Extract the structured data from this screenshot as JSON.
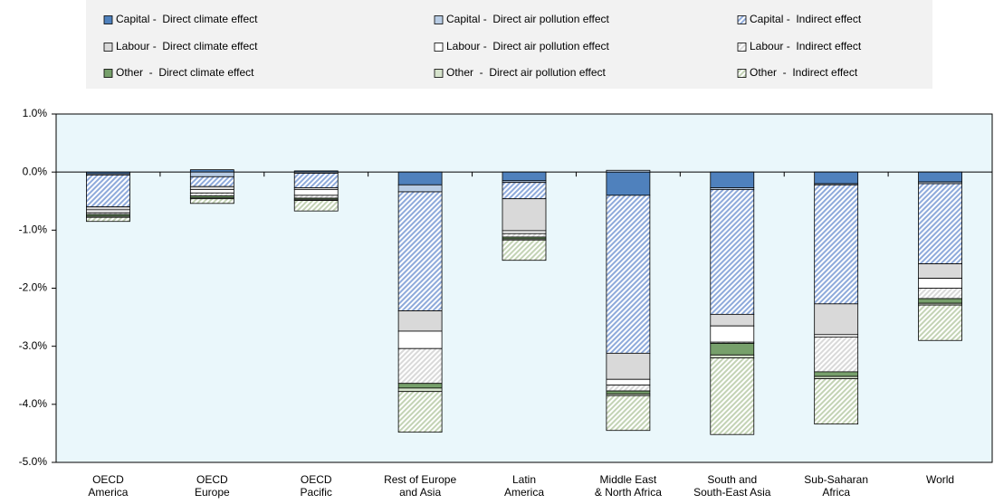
{
  "chart_data": {
    "type": "stacked-bar",
    "categories": [
      [
        "OECD",
        "America"
      ],
      [
        "OECD",
        "Europe"
      ],
      [
        "OECD",
        "Pacific"
      ],
      [
        "Rest of Europe",
        "and Asia"
      ],
      [
        "Latin",
        "America"
      ],
      [
        "Middle East",
        "& North Africa"
      ],
      [
        "South and",
        "South-East Asia"
      ],
      [
        "Sub-Saharan",
        "Africa"
      ],
      [
        "World"
      ]
    ],
    "series": [
      {
        "name": "Capital -  Direct climate effect",
        "color": "#4f81bd",
        "hatch": false,
        "values": [
          -0.03,
          0.04,
          0.02,
          -0.22,
          -0.15,
          -0.4,
          -0.27,
          -0.2,
          -0.17
        ]
      },
      {
        "name": "Capital -  Direct air pollution effect",
        "color": "#b8cce4",
        "hatch": false,
        "values": [
          -0.02,
          -0.08,
          -0.02,
          -0.12,
          -0.03,
          0.03,
          -0.03,
          -0.02,
          -0.03
        ]
      },
      {
        "name": "Capital -  Indirect effect",
        "color": "#8eaadb",
        "hatch": true,
        "values": [
          -0.55,
          -0.17,
          -0.25,
          -2.05,
          -0.28,
          -2.72,
          -2.15,
          -2.05,
          -1.38
        ]
      },
      {
        "name": "Labour -  Direct climate effect",
        "color": "#d9d9d9",
        "hatch": false,
        "values": [
          -0.05,
          -0.05,
          -0.03,
          -0.35,
          -0.55,
          -0.45,
          -0.2,
          -0.53,
          -0.25
        ]
      },
      {
        "name": "Labour -  Direct air pollution effect",
        "color": "#ffffff",
        "hatch": false,
        "values": [
          -0.05,
          -0.06,
          -0.1,
          -0.3,
          -0.05,
          -0.1,
          -0.28,
          -0.04,
          -0.17
        ]
      },
      {
        "name": "Labour -  Indirect effect",
        "color": "#d9d9d9",
        "hatch": true,
        "values": [
          -0.03,
          -0.05,
          -0.05,
          -0.6,
          -0.06,
          -0.1,
          -0.02,
          -0.6,
          -0.18
        ]
      },
      {
        "name": "Other  -  Direct climate effect",
        "color": "#77a06b",
        "hatch": false,
        "values": [
          -0.03,
          -0.03,
          -0.02,
          -0.08,
          -0.03,
          -0.05,
          -0.2,
          -0.08,
          -0.08
        ]
      },
      {
        "name": "Other  -  Direct air pollution effect",
        "color": "#d6e3cc",
        "hatch": false,
        "values": [
          -0.02,
          -0.02,
          -0.02,
          -0.06,
          -0.02,
          -0.03,
          -0.05,
          -0.04,
          -0.03
        ]
      },
      {
        "name": "Other  -  Indirect effect",
        "color": "#c3d3b5",
        "hatch": true,
        "values": [
          -0.07,
          -0.08,
          -0.18,
          -0.7,
          -0.35,
          -0.6,
          -1.32,
          -0.78,
          -0.61
        ]
      }
    ],
    "ylim": [
      -5,
      1
    ],
    "yticks": [
      {
        "value": 1,
        "label": "1.0%"
      },
      {
        "value": 0,
        "label": "0.0%"
      },
      {
        "value": -1,
        "label": "-1.0%"
      },
      {
        "value": -2,
        "label": "-2.0%"
      },
      {
        "value": -3,
        "label": "-3.0%"
      },
      {
        "value": -4,
        "label": "-4.0%"
      },
      {
        "value": -5,
        "label": "-5.0%"
      }
    ],
    "legend_position": "top"
  }
}
